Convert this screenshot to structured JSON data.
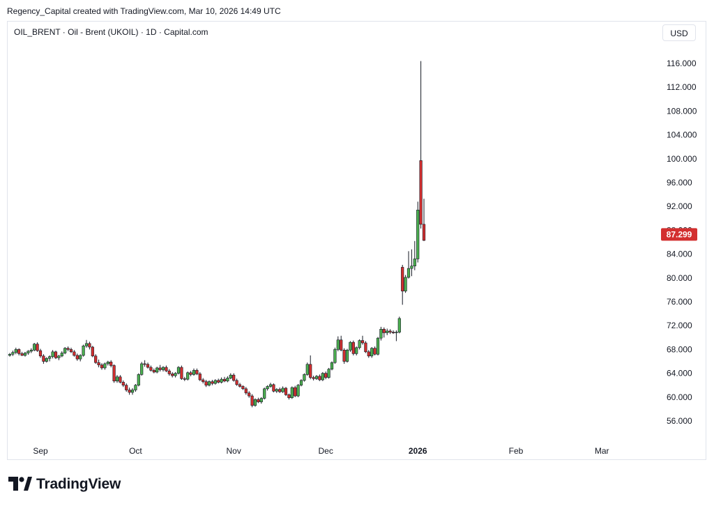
{
  "header": {
    "attribution": "Regency_Capital created with TradingView.com, Mar 10, 2026 14:49 UTC"
  },
  "symbol": {
    "line": "OIL_BRENT · Oil - Brent (UKOIL) · 1D · Capital.com"
  },
  "currency": {
    "label": "USD"
  },
  "footer": {
    "brand": "TradingView",
    "logo_icon": "tradingview-logo-icon"
  },
  "colors": {
    "up": "#4caf50",
    "down": "#d32f2f",
    "wick": "#131722",
    "price_label": "#d32f2f"
  },
  "chart_data": {
    "type": "candlestick",
    "title": "OIL_BRENT · Oil - Brent (UKOIL) · 1D · Capital.com",
    "xlabel": "",
    "ylabel": "",
    "ylim": [
      52,
      119
    ],
    "grid": false,
    "current_price": {
      "value": 87.299,
      "label": "87.299"
    },
    "y_ticks": [
      "56.000",
      "60.000",
      "64.000",
      "68.000",
      "72.000",
      "76.000",
      "80.000",
      "84.000",
      "88.000",
      "92.000",
      "96.000",
      "100.000",
      "104.000",
      "108.000",
      "112.000",
      "116.000"
    ],
    "y_tick_values": [
      56,
      60,
      64,
      68,
      72,
      76,
      80,
      84,
      88,
      92,
      96,
      100,
      104,
      108,
      112,
      116
    ],
    "x_ticks": [
      {
        "label": "Sep",
        "index": 10,
        "bold": false
      },
      {
        "label": "Oct",
        "index": 41,
        "bold": false
      },
      {
        "label": "Nov",
        "index": 73,
        "bold": false
      },
      {
        "label": "Dec",
        "index": 103,
        "bold": false
      },
      {
        "label": "2026",
        "index": 133,
        "bold": true
      },
      {
        "label": "Feb",
        "index": 165,
        "bold": false
      },
      {
        "label": "Mar",
        "index": 193,
        "bold": false
      }
    ],
    "candles": [
      [
        67.0,
        67.4,
        66.8,
        67.2
      ],
      [
        67.2,
        67.8,
        66.9,
        67.5
      ],
      [
        67.5,
        68.3,
        67.2,
        68.0
      ],
      [
        68.0,
        68.2,
        67.0,
        67.3
      ],
      [
        67.3,
        67.6,
        66.9,
        67.0
      ],
      [
        67.0,
        67.6,
        66.8,
        67.4
      ],
      [
        67.4,
        67.9,
        67.1,
        67.7
      ],
      [
        67.7,
        68.2,
        67.4,
        67.9
      ],
      [
        67.9,
        69.1,
        67.7,
        68.9
      ],
      [
        68.9,
        69.2,
        67.6,
        67.8
      ],
      [
        67.8,
        68.1,
        66.6,
        66.9
      ],
      [
        66.9,
        67.2,
        65.6,
        66.0
      ],
      [
        66.0,
        66.7,
        65.8,
        66.5
      ],
      [
        66.5,
        67.0,
        66.0,
        66.8
      ],
      [
        66.8,
        67.9,
        66.5,
        67.6
      ],
      [
        67.6,
        67.8,
        66.4,
        66.6
      ],
      [
        66.6,
        67.1,
        66.2,
        66.9
      ],
      [
        66.9,
        67.7,
        66.7,
        67.4
      ],
      [
        67.4,
        68.4,
        67.2,
        68.2
      ],
      [
        68.2,
        68.5,
        67.7,
        68.0
      ],
      [
        68.0,
        68.3,
        67.4,
        67.6
      ],
      [
        67.6,
        67.9,
        66.8,
        67.0
      ],
      [
        67.0,
        67.3,
        66.1,
        66.4
      ],
      [
        66.4,
        67.2,
        66.0,
        67.0
      ],
      [
        67.0,
        68.8,
        66.8,
        68.6
      ],
      [
        68.6,
        69.6,
        68.3,
        69.0
      ],
      [
        69.0,
        69.3,
        68.0,
        68.4
      ],
      [
        68.4,
        68.6,
        66.7,
        66.9
      ],
      [
        66.9,
        67.2,
        65.6,
        65.8
      ],
      [
        65.8,
        66.3,
        65.0,
        65.4
      ],
      [
        65.4,
        65.7,
        64.6,
        64.9
      ],
      [
        64.9,
        65.8,
        64.6,
        65.6
      ],
      [
        65.6,
        66.1,
        65.3,
        65.9
      ],
      [
        65.9,
        66.2,
        65.0,
        65.3
      ],
      [
        65.3,
        65.5,
        62.4,
        62.7
      ],
      [
        62.7,
        63.7,
        62.4,
        63.4
      ],
      [
        63.4,
        63.7,
        62.3,
        62.5
      ],
      [
        62.5,
        62.8,
        61.7,
        62.0
      ],
      [
        62.0,
        62.3,
        60.9,
        61.2
      ],
      [
        61.2,
        61.6,
        60.4,
        60.8
      ],
      [
        60.8,
        61.5,
        60.4,
        61.2
      ],
      [
        61.2,
        62.2,
        60.9,
        62.0
      ],
      [
        62.0,
        64.0,
        61.8,
        63.8
      ],
      [
        63.8,
        65.9,
        63.6,
        65.6
      ],
      [
        65.6,
        66.2,
        65.1,
        65.5
      ],
      [
        65.5,
        65.8,
        64.8,
        65.0
      ],
      [
        65.0,
        65.3,
        64.3,
        64.5
      ],
      [
        64.5,
        64.8,
        64.0,
        64.2
      ],
      [
        64.2,
        65.1,
        64.0,
        64.9
      ],
      [
        64.9,
        65.4,
        64.3,
        64.6
      ],
      [
        64.6,
        65.2,
        64.3,
        65.0
      ],
      [
        65.0,
        65.3,
        64.2,
        64.4
      ],
      [
        64.4,
        64.7,
        63.6,
        63.9
      ],
      [
        63.9,
        64.2,
        63.3,
        63.6
      ],
      [
        63.6,
        64.2,
        63.3,
        64.0
      ],
      [
        64.0,
        65.2,
        63.8,
        65.0
      ],
      [
        65.0,
        65.3,
        62.9,
        63.1
      ],
      [
        63.1,
        63.4,
        62.7,
        63.0
      ],
      [
        63.0,
        64.3,
        62.8,
        64.1
      ],
      [
        64.1,
        64.4,
        63.5,
        63.8
      ],
      [
        63.8,
        64.8,
        63.6,
        64.5
      ],
      [
        64.5,
        64.8,
        63.7,
        63.9
      ],
      [
        63.9,
        64.2,
        62.7,
        62.9
      ],
      [
        62.9,
        63.2,
        62.3,
        62.6
      ],
      [
        62.6,
        62.9,
        61.7,
        62.0
      ],
      [
        62.0,
        62.8,
        61.8,
        62.6
      ],
      [
        62.6,
        62.9,
        62.0,
        62.3
      ],
      [
        62.3,
        63.0,
        62.1,
        62.8
      ],
      [
        62.8,
        63.1,
        62.3,
        62.5
      ],
      [
        62.5,
        63.3,
        62.3,
        63.0
      ],
      [
        63.0,
        63.4,
        62.5,
        62.7
      ],
      [
        62.7,
        63.5,
        62.5,
        63.2
      ],
      [
        63.2,
        64.0,
        63.0,
        63.7
      ],
      [
        63.7,
        64.0,
        62.6,
        62.8
      ],
      [
        62.8,
        63.1,
        61.9,
        62.1
      ],
      [
        62.1,
        62.4,
        61.6,
        61.8
      ],
      [
        61.8,
        62.0,
        61.2,
        61.4
      ],
      [
        61.4,
        61.7,
        60.4,
        60.7
      ],
      [
        60.7,
        61.0,
        59.9,
        60.2
      ],
      [
        60.2,
        60.5,
        58.3,
        58.6
      ],
      [
        58.6,
        59.8,
        58.4,
        59.6
      ],
      [
        59.6,
        59.9,
        59.0,
        59.2
      ],
      [
        59.2,
        60.0,
        58.9,
        59.8
      ],
      [
        59.8,
        61.6,
        59.6,
        61.4
      ],
      [
        61.4,
        62.0,
        61.1,
        61.8
      ],
      [
        61.8,
        62.4,
        61.6,
        62.1
      ],
      [
        62.1,
        62.3,
        60.8,
        61.0
      ],
      [
        61.0,
        61.5,
        60.7,
        61.3
      ],
      [
        61.3,
        61.6,
        60.7,
        60.9
      ],
      [
        60.9,
        61.8,
        60.7,
        61.5
      ],
      [
        61.5,
        61.7,
        60.2,
        60.4
      ],
      [
        60.4,
        60.6,
        59.6,
        59.9
      ],
      [
        59.9,
        61.8,
        59.7,
        61.6
      ],
      [
        61.6,
        61.9,
        60.0,
        60.2
      ],
      [
        60.2,
        62.2,
        60.0,
        62.0
      ],
      [
        62.0,
        63.0,
        61.8,
        62.8
      ],
      [
        62.8,
        64.0,
        62.6,
        63.8
      ],
      [
        63.8,
        65.8,
        63.6,
        65.5
      ],
      [
        65.5,
        67.0,
        63.0,
        63.3
      ],
      [
        63.3,
        63.6,
        62.8,
        63.1
      ],
      [
        63.1,
        63.7,
        62.9,
        63.5
      ],
      [
        63.5,
        63.8,
        62.7,
        62.9
      ],
      [
        62.9,
        64.2,
        62.7,
        64.0
      ],
      [
        64.0,
        64.3,
        63.0,
        63.3
      ],
      [
        63.3,
        64.9,
        63.1,
        64.7
      ],
      [
        64.7,
        66.0,
        64.5,
        65.8
      ],
      [
        65.8,
        68.3,
        65.6,
        68.0
      ],
      [
        68.0,
        70.2,
        67.7,
        69.6
      ],
      [
        69.6,
        70.3,
        67.7,
        67.9
      ],
      [
        67.9,
        68.2,
        65.6,
        66.0
      ],
      [
        66.0,
        68.1,
        65.8,
        67.9
      ],
      [
        67.9,
        69.4,
        67.6,
        69.2
      ],
      [
        69.2,
        69.5,
        67.0,
        67.3
      ],
      [
        67.3,
        68.5,
        67.0,
        68.3
      ],
      [
        68.3,
        69.7,
        68.0,
        69.5
      ],
      [
        69.5,
        70.3,
        68.8,
        69.1
      ],
      [
        69.1,
        69.4,
        67.4,
        67.6
      ],
      [
        67.6,
        67.9,
        66.6,
        66.9
      ],
      [
        66.9,
        68.4,
        66.6,
        68.2
      ],
      [
        68.2,
        68.5,
        67.0,
        67.2
      ],
      [
        67.2,
        70.1,
        67.0,
        69.9
      ],
      [
        69.9,
        71.8,
        69.5,
        71.4
      ],
      [
        71.4,
        71.7,
        70.0,
        70.8
      ],
      [
        70.8,
        71.5,
        70.4,
        71.1
      ],
      [
        71.1,
        71.4,
        70.6,
        70.9
      ],
      [
        70.9,
        71.2,
        70.6,
        70.8
      ],
      [
        70.8,
        71.2,
        69.4,
        70.9
      ],
      [
        70.9,
        73.5,
        70.7,
        73.2
      ],
      [
        81.8,
        82.2,
        75.5,
        77.8
      ],
      [
        77.8,
        80.5,
        77.5,
        80.1
      ],
      [
        80.1,
        84.5,
        79.9,
        81.6
      ],
      [
        81.6,
        84.8,
        80.3,
        82.0
      ],
      [
        82.0,
        86.2,
        81.3,
        83.2
      ],
      [
        83.2,
        92.8,
        82.6,
        91.4
      ],
      [
        99.7,
        116.4,
        88.3,
        89.0
      ],
      [
        89.0,
        93.3,
        86.2,
        86.3
      ]
    ]
  }
}
